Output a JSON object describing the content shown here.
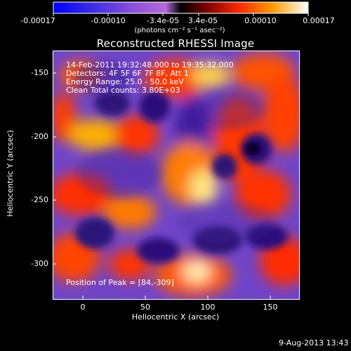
{
  "colorbar": {
    "tick_labels": [
      "-0.00017",
      "-0.00010",
      "-3.4e-05",
      "3.4e-05",
      "0.00010",
      "0.00017"
    ],
    "unit_label": "(photons cm⁻² s⁻¹ asec⁻²)"
  },
  "plot": {
    "title": "Reconstructed RHESSI Image",
    "xlabel": "Heliocentric X (arcsec)",
    "ylabel": "Heliocentric Y (arcsec)",
    "x_ticks": [
      "0",
      "50",
      "100",
      "150"
    ],
    "y_ticks": [
      "-150",
      "-200",
      "-250",
      "-300"
    ]
  },
  "info": {
    "time_range": "14-Feb-2011 19:32:48.000 to 19:35:32.000",
    "detectors": "Detectors: 4F 5F 6F 7F 8F, Att 1",
    "energy_range": "Energy Range: 25.0 - 50.0 keV",
    "clean_counts": "Clean    Total counts: 3.80E+03",
    "peak_position": "Position of Peak = [84,-309]"
  },
  "footer": {
    "timestamp": "9-Aug-2013 13:43"
  },
  "colors": {
    "background": "#000000",
    "text": "#ffffff"
  }
}
